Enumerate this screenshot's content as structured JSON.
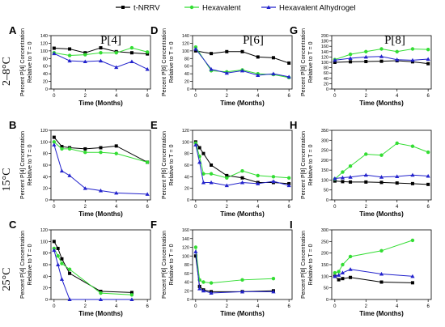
{
  "legend": {
    "entries": [
      {
        "label": "t-NRRV",
        "color": "#000000",
        "marker": "square"
      },
      {
        "label": "Hexavalent",
        "color": "#33dd33",
        "marker": "circle"
      },
      {
        "label": "Hexavalent Alhydrogel",
        "color": "#2222cc",
        "marker": "triangle"
      }
    ],
    "placement": "top-center"
  },
  "column_titles": [
    "P[4]",
    "P[6]",
    "P[8]"
  ],
  "row_labels": [
    "2–8°C",
    "15°C",
    "25°C"
  ],
  "colors": {
    "t_nrrv": "#000000",
    "hexavalent": "#33dd33",
    "alhydrogel": "#2222cc"
  },
  "chart_data": [
    {
      "panel": "A",
      "type": "line",
      "grid": false,
      "xlabel": "Time (Months)",
      "ylabel": [
        "Percent P[4] Concentration",
        "Relative to T = 0"
      ],
      "xlim": [
        -0.2,
        6.2
      ],
      "ylim": [
        0,
        140
      ],
      "xticks": [
        "0",
        "2",
        "4",
        "6"
      ],
      "yticks": [
        "0",
        "20",
        "40",
        "60",
        "80",
        "100",
        "120",
        "140"
      ],
      "series": [
        {
          "name": "t-NRRV",
          "x": [
            0,
            1,
            2,
            3,
            4,
            5,
            6
          ],
          "y": [
            107,
            105,
            95,
            108,
            98,
            95,
            92
          ]
        },
        {
          "name": "Hexavalent",
          "x": [
            0,
            1,
            2,
            3,
            4,
            5,
            6
          ],
          "y": [
            95,
            88,
            90,
            95,
            95,
            108,
            97
          ]
        },
        {
          "name": "Hexavalent Alhydrogel",
          "x": [
            0,
            1,
            2,
            3,
            4,
            5,
            6
          ],
          "y": [
            93,
            74,
            72,
            74,
            57,
            72,
            52
          ]
        }
      ]
    },
    {
      "panel": "B",
      "type": "line",
      "grid": false,
      "xlabel": "Time (Months)",
      "ylabel": [
        "Percent P[4] Concentration",
        "Relative to T = 0"
      ],
      "xlim": [
        -0.2,
        6.2
      ],
      "ylim": [
        0,
        120
      ],
      "xticks": [
        "0",
        "2",
        "4",
        "6"
      ],
      "yticks": [
        "0",
        "20",
        "40",
        "60",
        "80",
        "100",
        "120"
      ],
      "series": [
        {
          "name": "t-NRRV",
          "x": [
            0,
            0.5,
            1,
            2,
            3,
            4,
            6
          ],
          "y": [
            108,
            92,
            90,
            88,
            90,
            93,
            65
          ]
        },
        {
          "name": "Hexavalent",
          "x": [
            0,
            0.5,
            1,
            2,
            3,
            4,
            6
          ],
          "y": [
            100,
            88,
            88,
            82,
            82,
            80,
            65
          ]
        },
        {
          "name": "Hexavalent Alhydrogel",
          "x": [
            0,
            0.5,
            1,
            2,
            3,
            4,
            6
          ],
          "y": [
            95,
            50,
            42,
            20,
            16,
            12,
            10
          ]
        }
      ]
    },
    {
      "panel": "C",
      "type": "line",
      "grid": false,
      "xlabel": "Time (Months)",
      "ylabel": [
        "Percent P[4] Concentration",
        "Relative to T = 0"
      ],
      "xlim": [
        -0.2,
        6.2
      ],
      "ylim": [
        0,
        120
      ],
      "xticks": [
        "0",
        "2",
        "4",
        "6"
      ],
      "yticks": [
        "0",
        "20",
        "40",
        "60",
        "80",
        "100",
        "120"
      ],
      "series": [
        {
          "name": "t-NRRV",
          "x": [
            0,
            0.25,
            0.5,
            1,
            3,
            5
          ],
          "y": [
            100,
            88,
            70,
            45,
            14,
            12
          ]
        },
        {
          "name": "Hexavalent",
          "x": [
            0,
            0.25,
            0.5,
            1,
            3,
            5
          ],
          "y": [
            88,
            75,
            62,
            52,
            11,
            8
          ]
        },
        {
          "name": "Hexavalent Alhydrogel",
          "x": [
            0,
            0.25,
            0.5,
            1,
            3,
            5
          ],
          "y": [
            85,
            60,
            35,
            0,
            0,
            0
          ]
        }
      ]
    },
    {
      "panel": "D",
      "type": "line",
      "grid": false,
      "xlabel": "Time (Months)",
      "ylabel": [
        "Percent P[6] Concentration",
        "Relative to T = 0"
      ],
      "xlim": [
        -0.2,
        6.2
      ],
      "ylim": [
        0,
        140
      ],
      "xticks": [
        "0",
        "2",
        "4",
        "6"
      ],
      "yticks": [
        "0",
        "20",
        "40",
        "60",
        "80",
        "100",
        "120",
        "140"
      ],
      "series": [
        {
          "name": "t-NRRV",
          "x": [
            0,
            1,
            2,
            3,
            4,
            5,
            6
          ],
          "y": [
            100,
            93,
            98,
            98,
            84,
            82,
            68
          ]
        },
        {
          "name": "Hexavalent",
          "x": [
            0,
            1,
            2,
            3,
            4,
            5,
            6
          ],
          "y": [
            110,
            48,
            45,
            50,
            40,
            38,
            30
          ]
        },
        {
          "name": "Hexavalent Alhydrogel",
          "x": [
            0,
            1,
            2,
            3,
            4,
            5,
            6
          ],
          "y": [
            105,
            52,
            42,
            48,
            36,
            40,
            32
          ]
        }
      ]
    },
    {
      "panel": "E",
      "type": "line",
      "grid": false,
      "xlabel": "Time (Months)",
      "ylabel": [
        "Percent P[6] Concentration",
        "Relative to T = 0"
      ],
      "xlim": [
        -0.2,
        6.2
      ],
      "ylim": [
        0,
        120
      ],
      "xticks": [
        "0",
        "2",
        "4",
        "6"
      ],
      "yticks": [
        "0",
        "20",
        "40",
        "60",
        "80",
        "100",
        "120"
      ],
      "series": [
        {
          "name": "t-NRRV",
          "x": [
            0,
            0.25,
            0.5,
            1,
            2,
            3,
            4,
            5,
            6
          ],
          "y": [
            100,
            90,
            80,
            60,
            42,
            38,
            30,
            30,
            28
          ]
        },
        {
          "name": "Hexavalent",
          "x": [
            0,
            0.25,
            0.5,
            1,
            2,
            3,
            4,
            5,
            6
          ],
          "y": [
            98,
            75,
            45,
            45,
            38,
            50,
            42,
            40,
            38
          ]
        },
        {
          "name": "Hexavalent Alhydrogel",
          "x": [
            0,
            0.25,
            0.5,
            1,
            2,
            3,
            4,
            5,
            6
          ],
          "y": [
            95,
            65,
            30,
            30,
            25,
            30,
            28,
            32,
            25
          ]
        }
      ]
    },
    {
      "panel": "F",
      "type": "line",
      "grid": false,
      "xlabel": "Time (Months)",
      "ylabel": [
        "Percent P[6] Concentration",
        "Relative to T = 0"
      ],
      "xlim": [
        -0.2,
        6.2
      ],
      "ylim": [
        0,
        160
      ],
      "xticks": [
        "0",
        "2",
        "4",
        "6"
      ],
      "yticks": [
        "0",
        "20",
        "40",
        "60",
        "80",
        "100",
        "120",
        "140",
        "160"
      ],
      "series": [
        {
          "name": "t-NRRV",
          "x": [
            0,
            0.25,
            0.5,
            1,
            3,
            5
          ],
          "y": [
            100,
            30,
            22,
            18,
            18,
            20
          ]
        },
        {
          "name": "Hexavalent",
          "x": [
            0,
            0.25,
            0.5,
            1,
            3,
            5
          ],
          "y": [
            120,
            45,
            40,
            38,
            45,
            48
          ]
        },
        {
          "name": "Hexavalent Alhydrogel",
          "x": [
            0,
            0.25,
            0.5,
            1,
            3,
            5
          ],
          "y": [
            110,
            25,
            20,
            15,
            18,
            18
          ]
        }
      ]
    },
    {
      "panel": "G",
      "type": "line",
      "grid": false,
      "xlabel": "Time (Months)",
      "ylabel": [
        "Percent P[8] Concentration",
        "Relative to T = 0"
      ],
      "xlim": [
        -0.2,
        6.2
      ],
      "ylim": [
        0,
        200
      ],
      "xticks": [
        "0",
        "2",
        "4",
        "6"
      ],
      "yticks": [
        "0",
        "20",
        "40",
        "60",
        "80",
        "100",
        "120",
        "140",
        "160",
        "180",
        "200"
      ],
      "series": [
        {
          "name": "t-NRRV",
          "x": [
            0,
            1,
            2,
            3,
            4,
            5,
            6
          ],
          "y": [
            100,
            102,
            103,
            104,
            106,
            102,
            95
          ]
        },
        {
          "name": "Hexavalent",
          "x": [
            0,
            1,
            2,
            3,
            4,
            5,
            6
          ],
          "y": [
            110,
            130,
            140,
            150,
            140,
            150,
            148
          ]
        },
        {
          "name": "Hexavalent Alhydrogel",
          "x": [
            0,
            1,
            2,
            3,
            4,
            5,
            6
          ],
          "y": [
            108,
            115,
            120,
            122,
            110,
            108,
            112
          ]
        }
      ]
    },
    {
      "panel": "H",
      "type": "line",
      "grid": false,
      "xlabel": "Time (Months)",
      "ylabel": [
        "Percent P[8] Concentration",
        "Relative to T = 0"
      ],
      "xlim": [
        -0.2,
        6.2
      ],
      "ylim": [
        0,
        350
      ],
      "xticks": [
        "0",
        "2",
        "4",
        "6"
      ],
      "yticks": [
        "0",
        "50",
        "100",
        "150",
        "200",
        "250",
        "300",
        "350"
      ],
      "series": [
        {
          "name": "t-NRRV",
          "x": [
            0,
            0.5,
            1,
            2,
            3,
            4,
            5,
            6
          ],
          "y": [
            95,
            92,
            90,
            90,
            88,
            85,
            82,
            78
          ]
        },
        {
          "name": "Hexavalent",
          "x": [
            0,
            0.5,
            1,
            2,
            3,
            4,
            5,
            6
          ],
          "y": [
            105,
            140,
            170,
            230,
            225,
            285,
            270,
            240
          ]
        },
        {
          "name": "Hexavalent Alhydrogel",
          "x": [
            0,
            0.5,
            1,
            2,
            3,
            4,
            5,
            6
          ],
          "y": [
            108,
            112,
            115,
            125,
            115,
            118,
            125,
            120
          ]
        }
      ]
    },
    {
      "panel": "I",
      "type": "line",
      "grid": false,
      "xlabel": "Time (Months)",
      "ylabel": [
        "Percent P[8] Concentration",
        "Relative to T = 0"
      ],
      "xlim": [
        -0.2,
        6.2
      ],
      "ylim": [
        0,
        300
      ],
      "xticks": [
        "0",
        "2",
        "4",
        "6"
      ],
      "yticks": [
        "0",
        "50",
        "100",
        "150",
        "200",
        "250",
        "300"
      ],
      "series": [
        {
          "name": "t-NRRV",
          "x": [
            0,
            0.25,
            0.5,
            1,
            3,
            5
          ],
          "y": [
            100,
            85,
            90,
            95,
            75,
            72
          ]
        },
        {
          "name": "Hexavalent",
          "x": [
            0,
            0.25,
            0.5,
            1,
            3,
            5
          ],
          "y": [
            115,
            120,
            150,
            185,
            210,
            255
          ]
        },
        {
          "name": "Hexavalent Alhydrogel",
          "x": [
            0,
            0.25,
            0.5,
            1,
            3,
            5
          ],
          "y": [
            100,
            105,
            115,
            130,
            110,
            100
          ]
        }
      ]
    }
  ]
}
